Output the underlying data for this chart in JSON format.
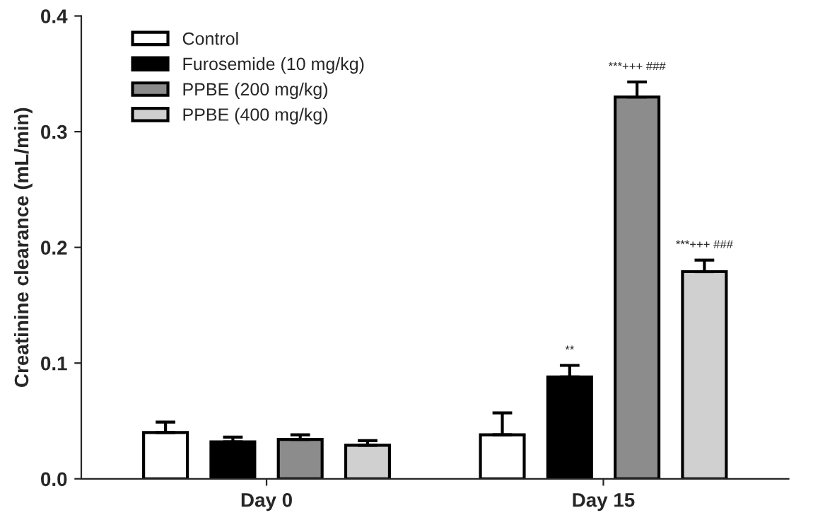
{
  "chart_data": {
    "type": "bar",
    "ylabel": "Creatinine clearance (mL/min)",
    "categories": [
      "Day 0",
      "Day 15"
    ],
    "series": [
      {
        "name": "Control",
        "color": "#ffffff",
        "values": [
          0.04,
          0.038
        ],
        "errors": [
          [
            0.04,
            0.049
          ],
          [
            0.038,
            0.057
          ]
        ]
      },
      {
        "name": "Furosemide (10 mg/kg)",
        "color": "#000000",
        "values": [
          0.032,
          0.088
        ],
        "errors": [
          [
            0.032,
            0.036
          ],
          [
            0.088,
            0.098
          ]
        ]
      },
      {
        "name": "PPBE (200 mg/kg)",
        "color": "#8c8c8c",
        "values": [
          0.034,
          0.33
        ],
        "errors": [
          [
            0.034,
            0.038
          ],
          [
            0.33,
            0.343
          ]
        ]
      },
      {
        "name": "PPBE (400 mg/kg)",
        "color": "#d0d0d0",
        "values": [
          0.029,
          0.179
        ],
        "errors": [
          [
            0.029,
            0.033
          ],
          [
            0.179,
            0.189
          ]
        ]
      }
    ],
    "annotations": [
      "**",
      "***+++ ###",
      "***+++ ###"
    ],
    "ylim": [
      0,
      0.4
    ],
    "yticks": [
      {
        "value": 0,
        "label": "0.0"
      },
      0.1,
      0.2,
      0.3,
      0.4
    ],
    "grid": false,
    "legend": "top left"
  }
}
